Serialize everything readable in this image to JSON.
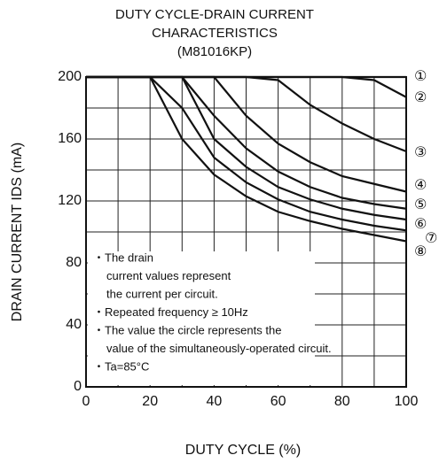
{
  "chart_data": {
    "type": "line",
    "title": [
      "DUTY CYCLE-DRAIN CURRENT",
      "CHARACTERISTICS",
      "(M81016KP)"
    ],
    "x_label": "DUTY CYCLE  (%)",
    "y_label": "DRAIN CURRENT  IDS (mA)",
    "x": [
      0,
      10,
      20,
      30,
      40,
      50,
      60,
      70,
      80,
      90,
      100
    ],
    "series": [
      {
        "name": "①",
        "color": "#111111",
        "values": [
          200,
          200,
          200,
          200,
          200,
          200,
          200,
          200,
          200,
          200,
          200
        ]
      },
      {
        "name": "②",
        "color": "#111111",
        "values": [
          200,
          200,
          200,
          200,
          200,
          200,
          200,
          200,
          200,
          198,
          187
        ]
      },
      {
        "name": "③",
        "color": "#111111",
        "values": [
          200,
          200,
          200,
          200,
          200,
          200,
          198,
          182,
          170,
          160,
          152
        ]
      },
      {
        "name": "④",
        "color": "#111111",
        "values": [
          200,
          200,
          200,
          200,
          200,
          175,
          157,
          145,
          136,
          131,
          126
        ]
      },
      {
        "name": "⑤",
        "color": "#111111",
        "values": [
          200,
          200,
          200,
          200,
          175,
          154,
          139,
          129,
          122,
          118,
          115
        ]
      },
      {
        "name": "⑥",
        "color": "#111111",
        "values": [
          200,
          200,
          200,
          200,
          160,
          142,
          129,
          121,
          115,
          111,
          108
        ]
      },
      {
        "name": "⑦",
        "color": "#111111",
        "values": [
          200,
          200,
          200,
          180,
          148,
          132,
          121,
          113,
          108,
          104,
          101
        ]
      },
      {
        "name": "⑧",
        "color": "#111111",
        "values": [
          200,
          200,
          200,
          160,
          137,
          123,
          113,
          107,
          102,
          98,
          94
        ]
      }
    ],
    "xlim": [
      0,
      100
    ],
    "xticks": [
      0,
      20,
      40,
      60,
      80,
      100
    ],
    "x_minor_ticks": [
      10,
      30,
      50,
      70,
      90
    ],
    "ylim": [
      0,
      200
    ],
    "yticks": [
      0,
      40,
      80,
      120,
      160,
      200
    ],
    "y_minor_ticks": [
      20,
      60,
      100,
      140,
      180
    ],
    "grid": true,
    "notes": [
      "・The drain",
      "current values represent",
      "the current per circuit.",
      "・Repeated frequency ≥ 10Hz",
      "・The value the circle represents the",
      "value of the simultaneously-operated circuit.",
      "・Ta=85°C"
    ]
  }
}
